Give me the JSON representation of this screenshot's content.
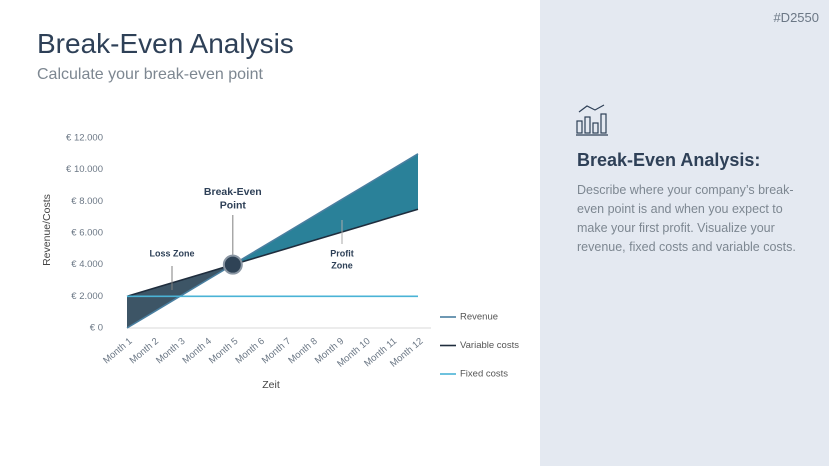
{
  "slide": {
    "title": "Break-Even Analysis",
    "subtitle": "Calculate your break-even point",
    "tag": "#D2550",
    "panel_heading": "Break-Even Analysis:",
    "panel_text": "Describe where your company’s break-even point is and when you expect to make your first profit. Visualize your revenue, fixed costs and variable costs."
  },
  "chart_data": {
    "type": "line",
    "x_label": "Zeit",
    "y_label": "Revenue/Costs",
    "categories": [
      "Month 1",
      "Month 2",
      "Month 3",
      "Month 4",
      "Month 5",
      "Month 6",
      "Month 7",
      "Month 8",
      "Month 9",
      "Month 10",
      "Month 11",
      "Month 12"
    ],
    "series": [
      {
        "name": "Revenue",
        "color": "#4a7fa0",
        "values": [
          0,
          1000,
          2000,
          3000,
          4000,
          5000,
          6000,
          7000,
          8000,
          9000,
          10000,
          11000
        ]
      },
      {
        "name": "Variable costs",
        "color": "#1f2d3d",
        "values": [
          2000,
          2500,
          3000,
          3500,
          4000,
          4500,
          5000,
          5500,
          6000,
          6500,
          7000,
          7500
        ]
      },
      {
        "name": "Fixed costs",
        "color": "#4ab3d6",
        "values": [
          2000,
          2000,
          2000,
          2000,
          2000,
          2000,
          2000,
          2000,
          2000,
          2000,
          2000,
          2000
        ]
      }
    ],
    "ylim": [
      0,
      12000
    ],
    "yticks": [
      {
        "value": 0,
        "label": "€ 0"
      },
      {
        "value": 2000,
        "label": "€ 2.000"
      },
      {
        "value": 4000,
        "label": "€ 4.000"
      },
      {
        "value": 6000,
        "label": "€ 6.000"
      },
      {
        "value": 8000,
        "label": "€ 8.000"
      },
      {
        "value": 10000,
        "label": "€ 10.000"
      },
      {
        "value": 12000,
        "label": "€ 12.000"
      }
    ],
    "loss_color": "#3d5566",
    "profit_color": "#2a8199",
    "legend": "right",
    "annotations": {
      "break_even": [
        "Break-Even",
        "Point"
      ],
      "loss": [
        "Loss Zone"
      ],
      "profit": [
        "Profit",
        "Zone"
      ]
    }
  }
}
